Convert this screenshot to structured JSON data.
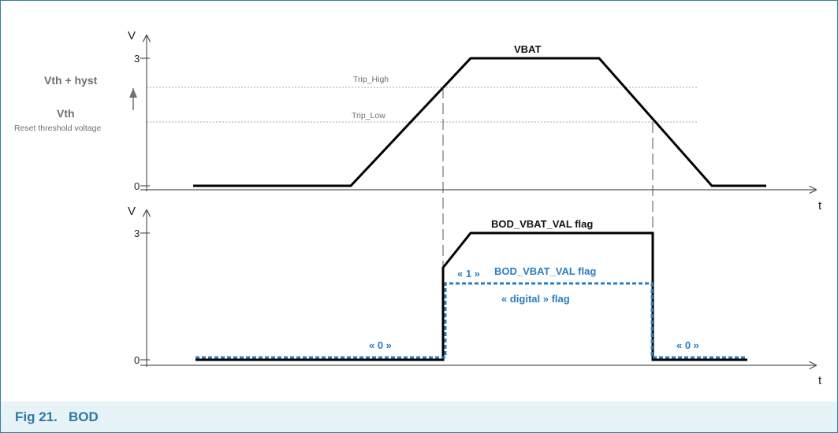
{
  "figure": {
    "caption": "Fig 21.   BOD"
  },
  "top_chart": {
    "y_axis_label": "V",
    "x_axis_label": "t",
    "y_ticks": [
      "3",
      "0"
    ],
    "series_label": "VBAT",
    "level_labels": {
      "upper": "Vth + hyst",
      "lower": "Vth",
      "lower_desc": "Reset threshold voltage"
    },
    "trip_labels": {
      "high": "Trip_High",
      "low": "Trip_Low"
    }
  },
  "bottom_chart": {
    "y_axis_label": "V",
    "x_axis_label": "t",
    "y_ticks": [
      "3",
      "0"
    ],
    "analog_label": "BOD_VBAT_VAL flag",
    "digital_one_label": "« 1 »",
    "digital_flag_label": "BOD_VBAT_VAL flag",
    "digital_desc": "« digital » flag",
    "zero_left": "« 0 »",
    "zero_right": "« 0 »"
  },
  "colors": {
    "frame": "#2f7fa3",
    "caption_text": "#2a7aa3",
    "caption_bg": "#e8f3f7",
    "analog_line": "#000000",
    "digital_line": "#2a7ec2",
    "threshold_line": "#a6a6a6",
    "label_gray": "#707070"
  }
}
